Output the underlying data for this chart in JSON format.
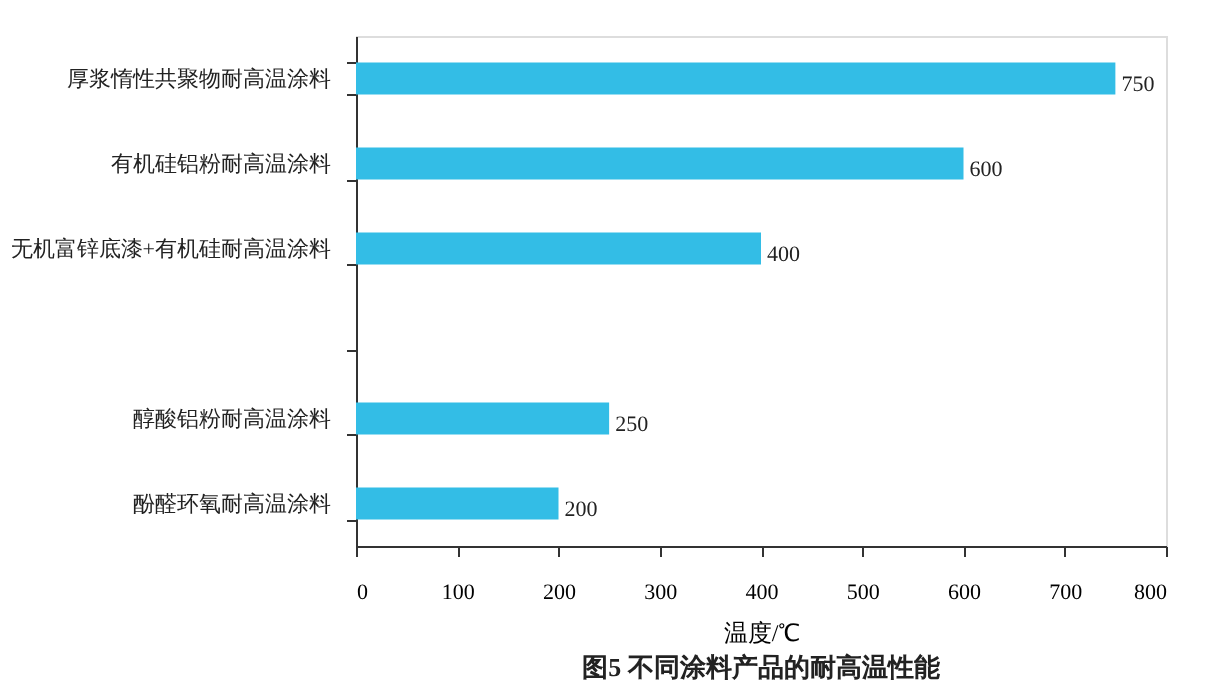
{
  "chart_data": {
    "type": "bar",
    "orientation": "horizontal",
    "categories": [
      "厚浆惰性共聚物耐高温涂料",
      "有机硅铝粉耐高温涂料",
      "无机富锌底漆+有机硅耐高温涂料",
      null,
      "醇酸铝粉耐高温涂料",
      "酚醛环氧耐高温涂料"
    ],
    "values": [
      750,
      600,
      400,
      null,
      250,
      200
    ],
    "color": "#33bde6",
    "data_labels": true,
    "xlabel": "温度/℃",
    "xlim": [
      0,
      800
    ],
    "xticks": [
      0,
      100,
      200,
      300,
      400,
      500,
      600,
      700,
      800
    ],
    "grid": false,
    "annotations": [
      "图5   不同涂料产品的耐高温性能"
    ]
  }
}
